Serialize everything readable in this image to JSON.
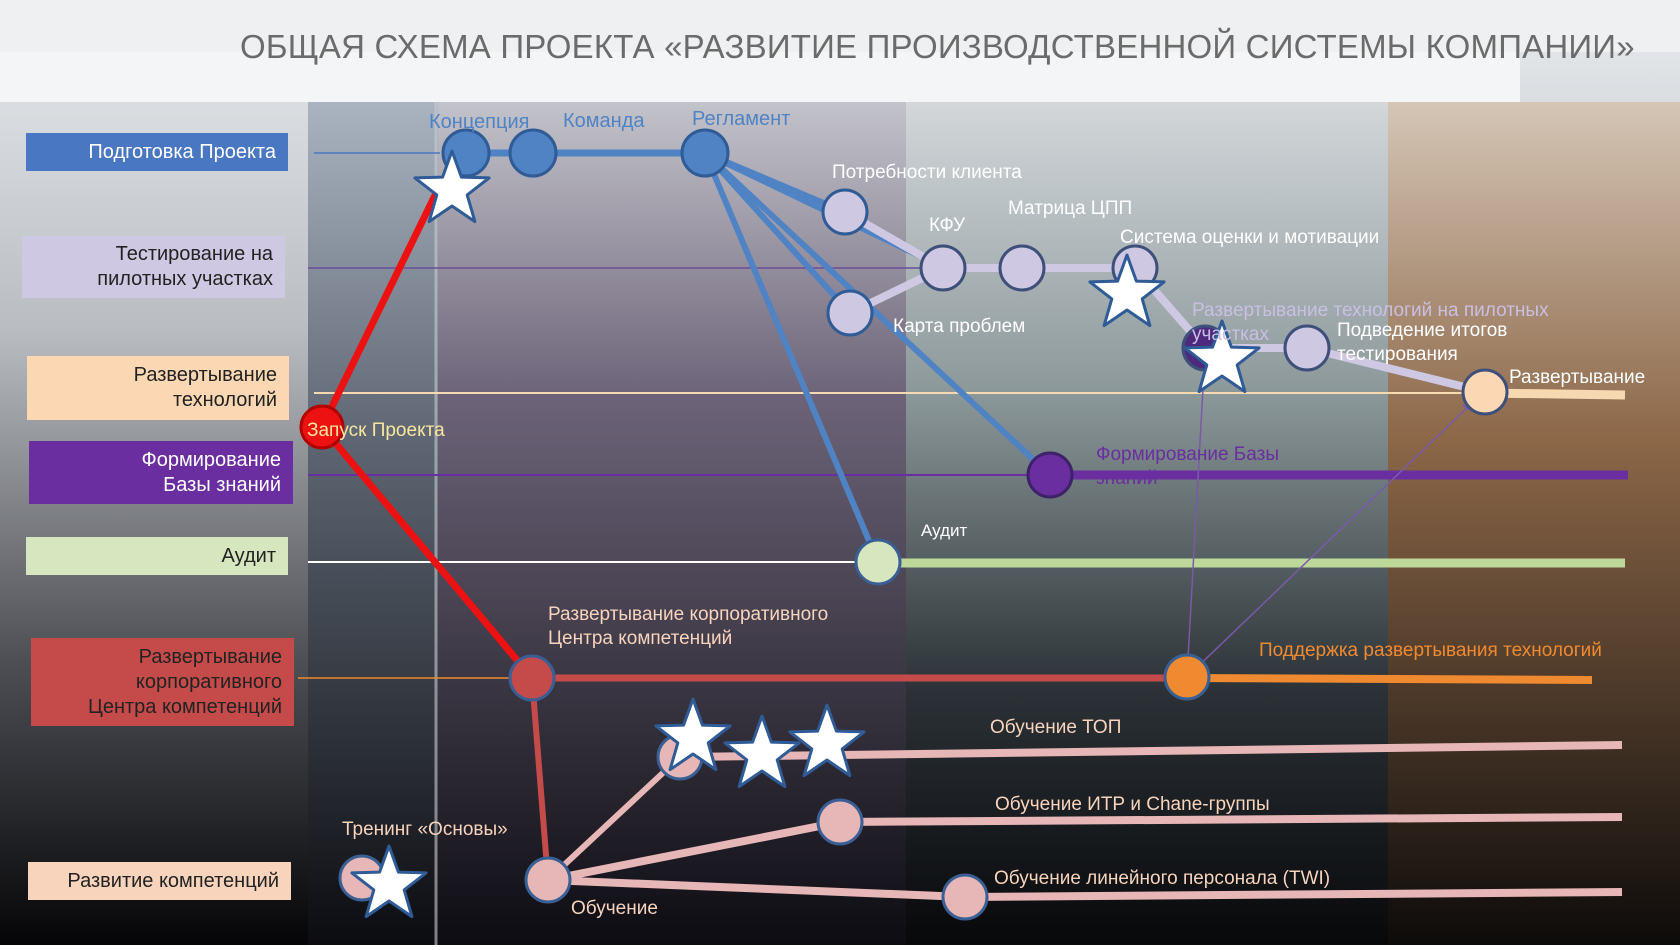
{
  "title": "ОБЩАЯ СХЕМА ПРОЕКТА «РАЗВИТИЕ ПРОИЗВОДСТВЕННОЙ СИСТЕМЫ КОМПАНИИ»",
  "tracks": {
    "prep": "Подготовка Проекта",
    "testing": "Тестирование на пилотных участках",
    "deploy_tech": "Развертывание технологий",
    "knowledge": "Формирование Базы знаний",
    "audit": "Аудит",
    "corp_center": "Развертывание корпоративного Центра компетенций",
    "competence": "Развитие компетенций"
  },
  "nodes": {
    "launch": "Запуск Проекта",
    "concept": "Концепция",
    "team": "Команда",
    "reglament": "Регламент",
    "client_needs": "Потребности клиента",
    "kfu": "КФУ",
    "cpp_matrix": "Матрица ЦПП",
    "eval_system": "Система оценки и мотивации",
    "problem_map": "Карта проблем",
    "pilot_deploy": "Развертывание технологий на пилотных участках",
    "test_summary": "Подведение итогов тестирования",
    "deployment": "Развертывание",
    "kb_formation": "Формирование Базы знаний",
    "audit": "Аудит",
    "corp_center": "Развертывание корпоративного Центра компетенций",
    "tech_support": "Поддержка развертывания технологий",
    "top_training": "Обучение ТОП",
    "itr_training": "Обучение ИТР и Chane-группы",
    "twi_training": "Обучение линейного персонала (TWI)",
    "basics_training": "Тренинг «Основы»",
    "training": "Обучение"
  },
  "colors": {
    "prep": "#4a77c2",
    "testing": "#cfc8e2",
    "deploy_tech": "#fbd8b3",
    "knowledge": "#6a2ea0",
    "audit": "#d6e6bf",
    "corp_center": "#c54b4b",
    "competence": "#f8d4bd",
    "launch": "#ee1111",
    "blue_line": "#4f83c4",
    "lavender_line": "#cfc8e2",
    "pink_line": "#e7b6b6",
    "orange": "#f08a30",
    "green_line": "#bed89a"
  }
}
